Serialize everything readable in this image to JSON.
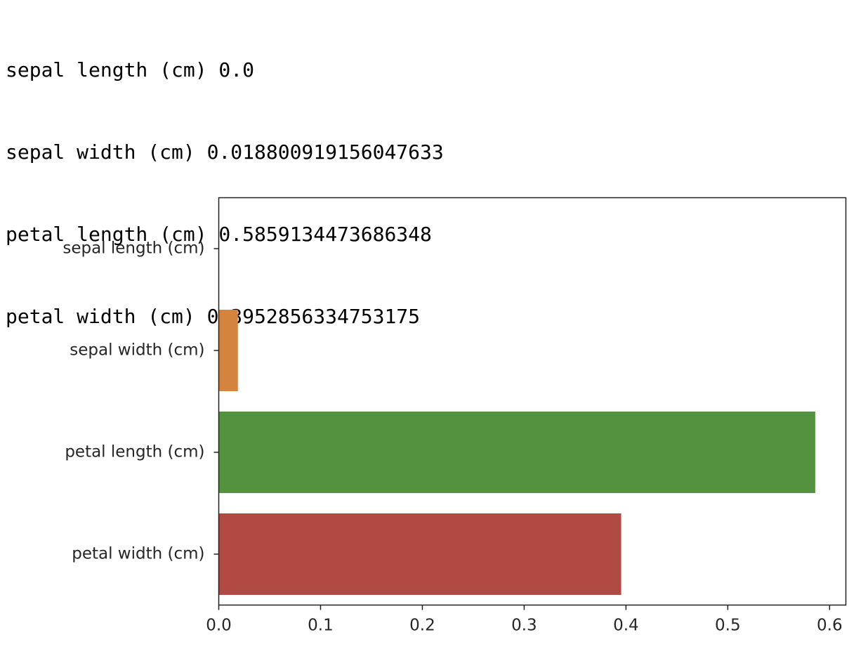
{
  "output": {
    "lines": [
      "sepal length (cm) 0.0",
      "sepal width (cm) 0.018800919156047633",
      "petal length (cm) 0.5859134473686348",
      "petal width (cm) 0.3952856334753175"
    ]
  },
  "chart_data": {
    "type": "bar",
    "orientation": "horizontal",
    "title": "",
    "xlabel": "",
    "ylabel": "",
    "categories": [
      "sepal length (cm)",
      "sepal width (cm)",
      "petal length (cm)",
      "petal width (cm)"
    ],
    "values": [
      0.0,
      0.018800919156047632,
      0.5859134473686348,
      0.3952856334753175
    ],
    "colors": [
      "#3a6fa8",
      "#d5843f",
      "#54923f",
      "#b04a43"
    ],
    "xlim": [
      0,
      0.616
    ],
    "xticks": [
      0.0,
      0.1,
      0.2,
      0.3,
      0.4,
      0.5,
      0.6
    ],
    "xtick_labels": [
      "0.0",
      "0.1",
      "0.2",
      "0.3",
      "0.4",
      "0.5",
      "0.6"
    ],
    "grid": false,
    "legend": "none"
  }
}
